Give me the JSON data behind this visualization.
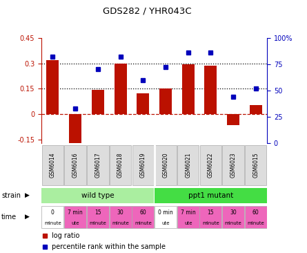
{
  "title": "GDS282 / YHR043C",
  "samples": [
    "GSM6014",
    "GSM6016",
    "GSM6017",
    "GSM6018",
    "GSM6019",
    "GSM6020",
    "GSM6021",
    "GSM6022",
    "GSM6023",
    "GSM6015"
  ],
  "log_ratio": [
    0.32,
    -0.17,
    0.145,
    0.3,
    0.125,
    0.15,
    0.295,
    0.285,
    -0.065,
    0.055
  ],
  "percentile_pct": [
    82,
    33,
    70,
    82,
    60,
    72,
    86,
    86,
    44,
    52
  ],
  "ylim_left": [
    -0.17,
    0.45
  ],
  "ylim_right": [
    0,
    100
  ],
  "yticks_left": [
    -0.15,
    0,
    0.15,
    0.3,
    0.45
  ],
  "yticks_right": [
    0,
    25,
    50,
    75,
    100
  ],
  "hlines": [
    0.15,
    0.3
  ],
  "bar_color": "#bb1100",
  "dot_color": "#0000bb",
  "strain_groups": [
    {
      "label": "wild type",
      "start": 0,
      "end": 5,
      "color": "#aaeea0"
    },
    {
      "label": "ppt1 mutant",
      "start": 5,
      "end": 10,
      "color": "#44dd44"
    }
  ],
  "time_labels": [
    {
      "line1": "0",
      "line2": "minute",
      "color": "#ffffff",
      "col": 0
    },
    {
      "line1": "7 min",
      "line2": "ute",
      "color": "#ee66bb",
      "col": 1
    },
    {
      "line1": "15",
      "line2": "minute",
      "color": "#ee66bb",
      "col": 2
    },
    {
      "line1": "30",
      "line2": "minute",
      "color": "#ee66bb",
      "col": 3
    },
    {
      "line1": "60",
      "line2": "minute",
      "color": "#ee66bb",
      "col": 4
    },
    {
      "line1": "0 min",
      "line2": "ute",
      "color": "#ffffff",
      "col": 5
    },
    {
      "line1": "7 min",
      "line2": "ute",
      "color": "#ee66bb",
      "col": 6
    },
    {
      "line1": "15",
      "line2": "minute",
      "color": "#ee66bb",
      "col": 7
    },
    {
      "line1": "30",
      "line2": "minute",
      "color": "#ee66bb",
      "col": 8
    },
    {
      "line1": "60",
      "line2": "minute",
      "color": "#ee66bb",
      "col": 9
    }
  ]
}
